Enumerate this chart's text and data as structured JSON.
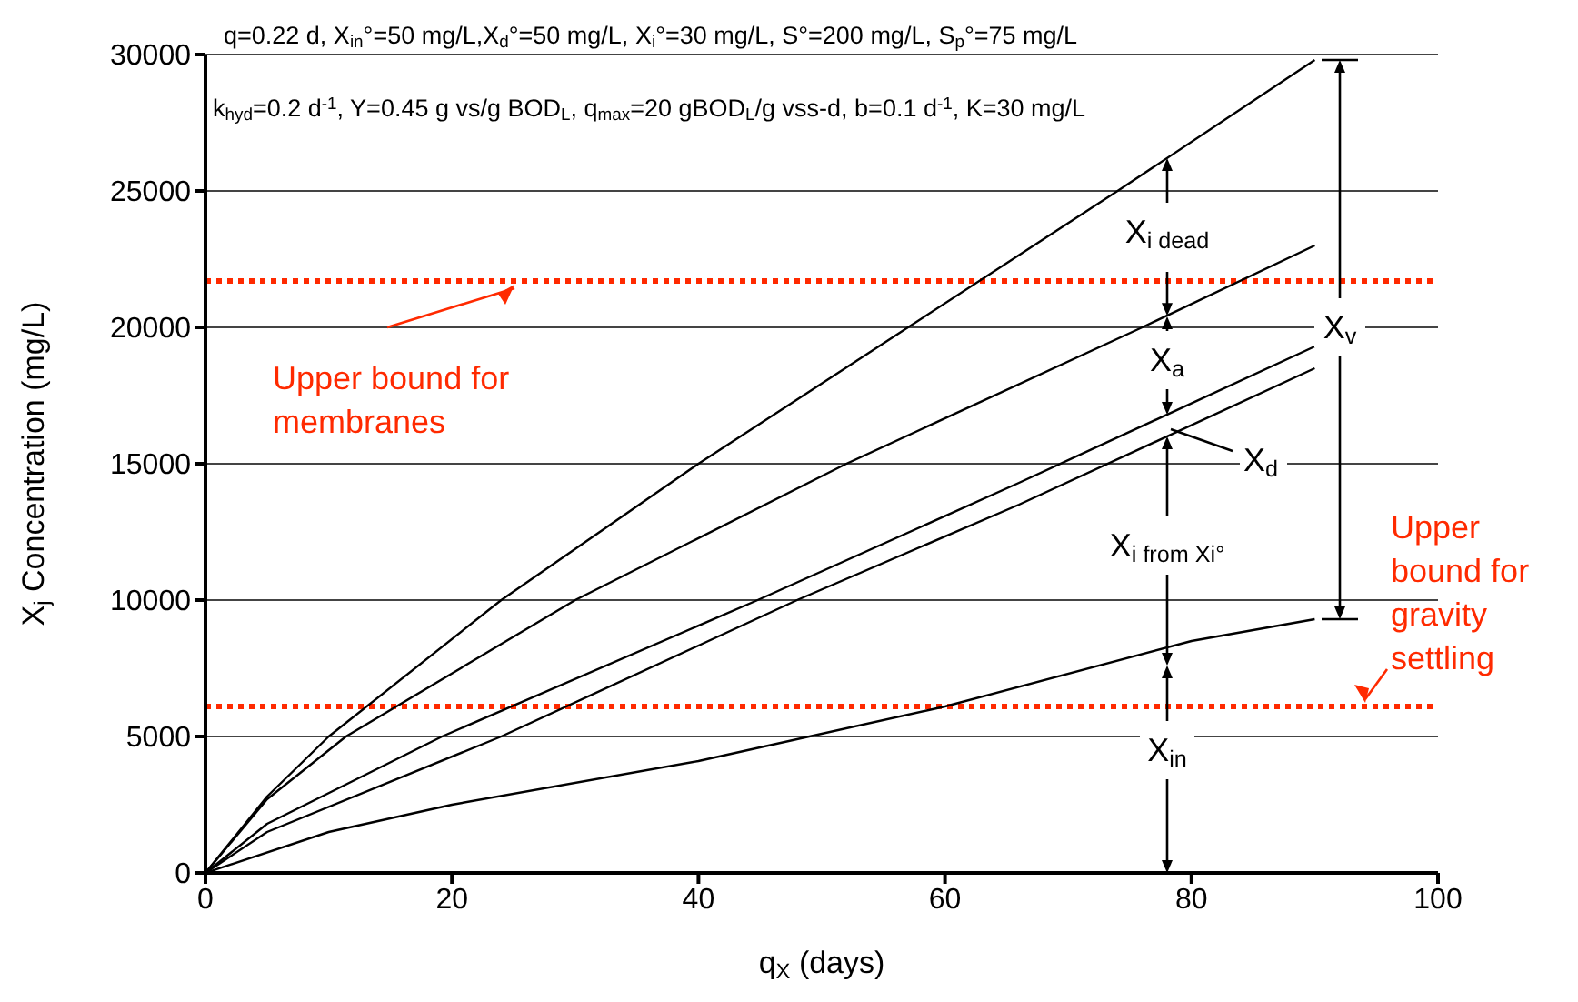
{
  "chart_data": {
    "type": "line",
    "xlabel": "q$_{X}$ (days)",
    "ylabel": "X$_{j}$ Concentration (mg/L)",
    "xlim": [
      0,
      100
    ],
    "ylim": [
      0,
      30000
    ],
    "xticks": [
      0,
      20,
      40,
      60,
      80,
      100
    ],
    "yticks": [
      0,
      5000,
      10000,
      15000,
      20000,
      25000,
      30000
    ],
    "grid": "y",
    "marker": "none",
    "line_style": "solid",
    "series": [
      {
        "color": "#000000",
        "x": [
          0,
          5,
          10,
          24,
          40,
          57,
          74,
          90
        ],
        "values": [
          0,
          2800,
          5000,
          10000,
          15000,
          20000,
          25000,
          29800
        ]
      },
      {
        "color": "#000000",
        "x": [
          0,
          5,
          11.4,
          30,
          52,
          76,
          90
        ],
        "values": [
          0,
          2700,
          5000,
          10000,
          15000,
          20000,
          23000
        ]
      },
      {
        "color": "#000000",
        "x": [
          0,
          5,
          19.2,
          44.8,
          66,
          90
        ],
        "values": [
          0,
          1800,
          5000,
          10000,
          14300,
          19300
        ]
      },
      {
        "color": "#000000",
        "x": [
          0,
          5,
          24,
          48,
          66,
          90
        ],
        "values": [
          0,
          1500,
          5000,
          10000,
          13500,
          18500
        ]
      },
      {
        "color": "#000000",
        "x": [
          0,
          10,
          20,
          40,
          60,
          80,
          90
        ],
        "values": [
          0,
          1500,
          2500,
          4100,
          6100,
          8500,
          9300
        ]
      }
    ],
    "ref_lines": [
      {
        "axis": "y",
        "value": 21700,
        "label": "Upper bound for membranes",
        "color": "#ff2a00",
        "line_style": "dotted"
      },
      {
        "axis": "y",
        "value": 6100,
        "label": "Upper bound for gravity settling",
        "color": "#ff2a00",
        "line_style": "dotted"
      }
    ],
    "annotations": [
      "q=0.22 d, X$_{in}$°=50 mg/L,X$_{d}$°=50 mg/L, X$_{i}$°=30 mg/L, S°=200 mg/L, S$_{p}$°=75 mg/L",
      "k$_{hyd}$=0.2 d$^{-1}$, Y=0.45 g vs/g BOD$_{L}$, q$_{max}$=20 gBOD$_{L}$/g vss-d, b=0.1 d$^{-1}$, K=30 mg/L",
      "X$_{i dead}$",
      "X$_{a}$",
      "X$_{d}$",
      "X$_{i from Xi°}$",
      "X$_{in}$",
      "X$_{v}$"
    ]
  }
}
